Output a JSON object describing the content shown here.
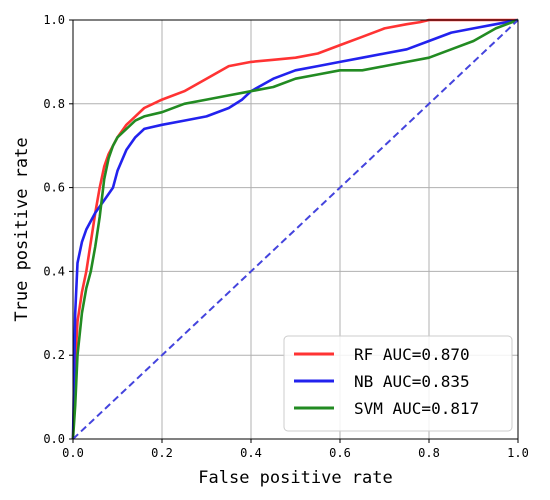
{
  "chart_data": {
    "type": "line",
    "title": "",
    "xlabel": "False positive rate",
    "ylabel": "True positive rate",
    "xlim": [
      0.0,
      1.0
    ],
    "ylim": [
      0.0,
      1.0
    ],
    "xticks": [
      "0.0",
      "0.2",
      "0.4",
      "0.6",
      "0.8",
      "1.0"
    ],
    "yticks": [
      "0.0",
      "0.2",
      "0.4",
      "0.6",
      "0.8",
      "1.0"
    ],
    "grid": true,
    "legend_position": "lower-right",
    "series": [
      {
        "name": "RF AUC=0.870",
        "color": "#ff3333",
        "x": [
          0.0,
          0.005,
          0.01,
          0.02,
          0.03,
          0.04,
          0.05,
          0.06,
          0.07,
          0.08,
          0.09,
          0.1,
          0.12,
          0.14,
          0.16,
          0.18,
          0.2,
          0.25,
          0.3,
          0.35,
          0.4,
          0.45,
          0.5,
          0.55,
          0.6,
          0.65,
          0.7,
          0.75,
          0.78,
          0.8,
          0.85,
          0.9,
          0.95,
          1.0
        ],
        "y": [
          0.0,
          0.18,
          0.28,
          0.35,
          0.4,
          0.47,
          0.54,
          0.6,
          0.65,
          0.68,
          0.7,
          0.72,
          0.75,
          0.77,
          0.79,
          0.8,
          0.81,
          0.83,
          0.86,
          0.89,
          0.9,
          0.905,
          0.91,
          0.92,
          0.94,
          0.96,
          0.98,
          0.99,
          0.995,
          1.0,
          1.0,
          1.0,
          1.0,
          1.0
        ]
      },
      {
        "name": "NB AUC=0.835",
        "color": "#2222ee",
        "x": [
          0.0,
          0.005,
          0.01,
          0.02,
          0.03,
          0.05,
          0.07,
          0.09,
          0.1,
          0.12,
          0.14,
          0.16,
          0.2,
          0.25,
          0.3,
          0.35,
          0.38,
          0.4,
          0.45,
          0.5,
          0.55,
          0.6,
          0.65,
          0.7,
          0.75,
          0.8,
          0.85,
          0.9,
          0.95,
          1.0
        ],
        "y": [
          0.0,
          0.3,
          0.42,
          0.47,
          0.5,
          0.54,
          0.57,
          0.6,
          0.64,
          0.69,
          0.72,
          0.74,
          0.75,
          0.76,
          0.77,
          0.79,
          0.81,
          0.83,
          0.86,
          0.88,
          0.89,
          0.9,
          0.91,
          0.92,
          0.93,
          0.95,
          0.97,
          0.98,
          0.99,
          1.0
        ]
      },
      {
        "name": "SVM AUC=0.817",
        "color": "#228b22",
        "x": [
          0.0,
          0.005,
          0.01,
          0.02,
          0.03,
          0.04,
          0.05,
          0.06,
          0.07,
          0.08,
          0.09,
          0.1,
          0.12,
          0.14,
          0.16,
          0.2,
          0.25,
          0.3,
          0.35,
          0.4,
          0.45,
          0.5,
          0.55,
          0.6,
          0.65,
          0.7,
          0.75,
          0.8,
          0.85,
          0.9,
          0.95,
          1.0
        ],
        "y": [
          0.0,
          0.08,
          0.2,
          0.3,
          0.36,
          0.4,
          0.46,
          0.53,
          0.62,
          0.67,
          0.7,
          0.72,
          0.74,
          0.76,
          0.77,
          0.78,
          0.8,
          0.81,
          0.82,
          0.83,
          0.84,
          0.86,
          0.87,
          0.88,
          0.88,
          0.89,
          0.9,
          0.91,
          0.93,
          0.95,
          0.98,
          1.0
        ]
      },
      {
        "name": "",
        "color": "#4444dd",
        "dashed": true,
        "x": [
          0.0,
          1.0
        ],
        "y": [
          0.0,
          1.0
        ]
      }
    ]
  }
}
